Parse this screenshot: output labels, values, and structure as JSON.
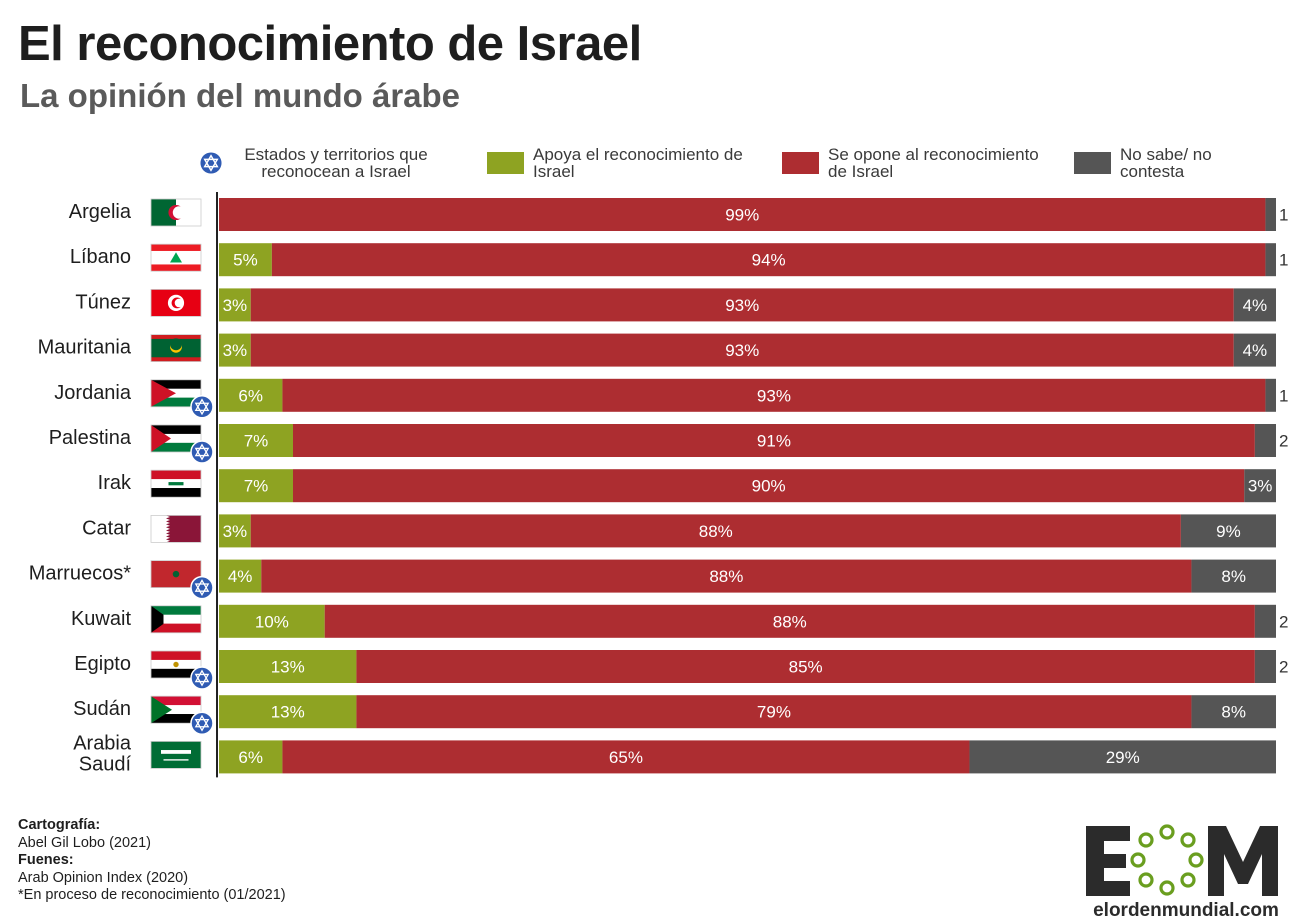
{
  "title": "El reconocimiento de Israel",
  "subtitle": "La opinión del mundo árabe",
  "legend": {
    "recognizes": "Estados y territorios que reconocean a Israel",
    "support": "Apoya el reconocimiento de Israel",
    "oppose": "Se opone al reconocimiento de Israel",
    "unknown": "No sabe/ no contesta"
  },
  "colors": {
    "support": "#8ea322",
    "oppose": "#ad2d31",
    "unknown": "#555555",
    "star": "#2f5bb3"
  },
  "chart_data": {
    "type": "bar",
    "orientation": "horizontal",
    "stacked": true,
    "unit": "%",
    "xlim": [
      0,
      100
    ],
    "categories": [
      "Argelia",
      "Líbano",
      "Túnez",
      "Mauritania",
      "Jordania",
      "Palestina",
      "Irak",
      "Catar",
      "Marruecos*",
      "Kuwait",
      "Egipto",
      "Sudán",
      "Arabia Saudí"
    ],
    "recognizes_israel": [
      false,
      false,
      false,
      false,
      true,
      true,
      false,
      false,
      true,
      false,
      true,
      true,
      false
    ],
    "series": [
      {
        "name": "Apoya el reconocimiento de Israel",
        "values": [
          0,
          5,
          3,
          3,
          6,
          7,
          7,
          3,
          4,
          10,
          13,
          13,
          6
        ]
      },
      {
        "name": "Se opone al reconocimiento de Israel",
        "values": [
          99,
          94,
          93,
          93,
          93,
          91,
          90,
          88,
          88,
          88,
          85,
          79,
          65
        ]
      },
      {
        "name": "No sabe/ no contesta",
        "values": [
          1,
          1,
          4,
          4,
          1,
          2,
          3,
          9,
          8,
          2,
          2,
          8,
          29
        ]
      }
    ],
    "legend_position": "top",
    "grid": false
  },
  "footer": {
    "cartography_label": "Cartografía:",
    "cartography_value": "Abel Gil Lobo (2021)",
    "sources_label": "Fuenes:",
    "sources_value": "Arab Opinion Index (2020)",
    "note": "*En proceso de reconocimiento (01/2021)"
  },
  "logo": {
    "text": "EOM",
    "url_text": "elordenmundial.com"
  }
}
